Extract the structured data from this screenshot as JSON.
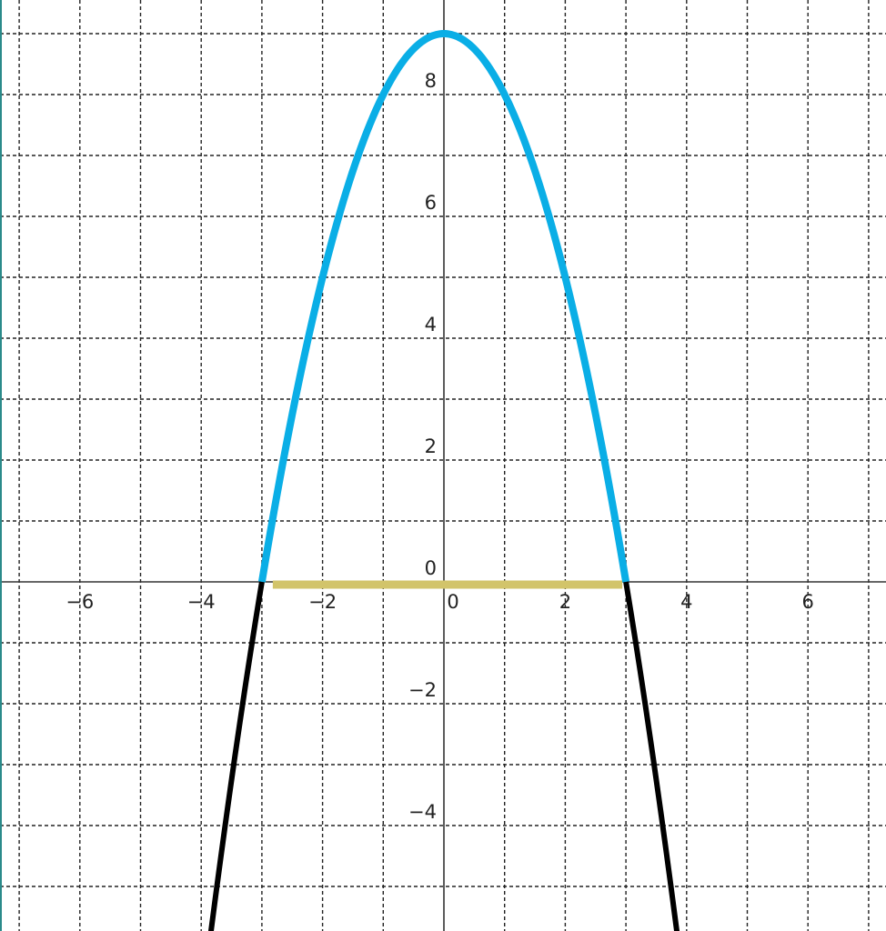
{
  "chart_data": {
    "type": "line",
    "title": "",
    "xlabel": "",
    "ylabel": "",
    "xlim": [
      -7.4,
      7.3
    ],
    "ylim": [
      -5.8,
      9.3
    ],
    "grid": true,
    "grid_step": 1,
    "grid_style": "dashed",
    "x_ticks": [
      {
        "value": -6,
        "label": "−6"
      },
      {
        "value": -4,
        "label": "−4"
      },
      {
        "value": -2,
        "label": "−2"
      },
      {
        "value": 0,
        "label": "0"
      },
      {
        "value": 2,
        "label": "2"
      },
      {
        "value": 4,
        "label": "4"
      },
      {
        "value": 6,
        "label": "6"
      }
    ],
    "y_ticks": [
      {
        "value": -4,
        "label": "−4"
      },
      {
        "value": -2,
        "label": "−2"
      },
      {
        "value": 0,
        "label": "0"
      },
      {
        "value": 2,
        "label": "2"
      },
      {
        "value": 4,
        "label": "4"
      },
      {
        "value": 6,
        "label": "6"
      },
      {
        "value": 8,
        "label": "8"
      }
    ],
    "function": "y = 9 - x^2",
    "series": [
      {
        "domain": [
          -3,
          3
        ],
        "color": "#0aaee6",
        "samples": 121
      },
      {
        "domain": [
          -3.9,
          -3
        ],
        "color": "#000000",
        "samples": 20
      },
      {
        "domain": [
          3,
          3.9
        ],
        "color": "#000000",
        "samples": 20
      }
    ],
    "interval": {
      "x": [
        -3,
        3
      ],
      "y": 0,
      "color": "#d2c46a"
    },
    "colors": {
      "axis": "#333333",
      "grid": "#222222",
      "frame": "#2a8a8a"
    }
  }
}
